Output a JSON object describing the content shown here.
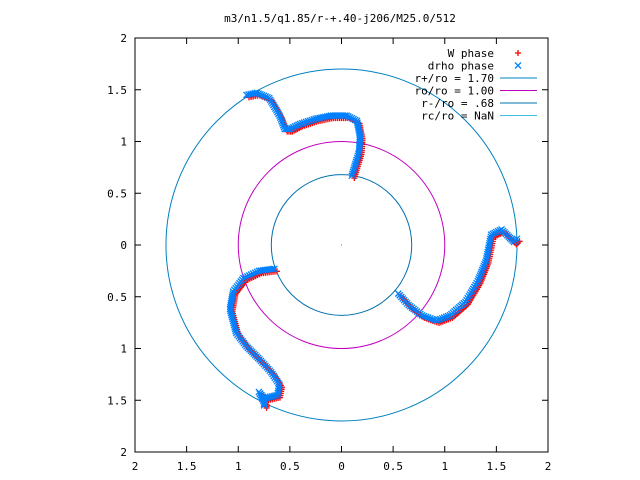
{
  "chart_data": {
    "type": "scatter",
    "title": "m3/n1.5/q1.85/r-+.40-j206/M25.0/512",
    "xlabel": "",
    "ylabel": "",
    "xlim": [
      -2,
      2
    ],
    "ylim": [
      -2,
      2
    ],
    "x_tick_values": [
      -2,
      -1.5,
      -1,
      -0.5,
      0,
      0.5,
      1,
      1.5,
      2
    ],
    "x_tick_labels": [
      "2",
      "1.5",
      "1",
      "0.5",
      "0",
      "0.5",
      "1",
      "1.5",
      "2"
    ],
    "y_tick_values": [
      2,
      1.5,
      1,
      0.5,
      0,
      -0.5,
      -1,
      -1.5,
      -2
    ],
    "y_tick_labels": [
      "2",
      "1.5",
      "1",
      "0.5",
      "0",
      "0.5",
      "1",
      "1.5",
      "2"
    ],
    "grid": false,
    "legend_position": "top-right",
    "series": [
      {
        "name": "W phase",
        "kind": "points",
        "marker": "+",
        "color": "#ff0000",
        "arms": [
          {
            "x": [
              0.1,
              0.17,
              0.18,
              0.15,
              0.05,
              -0.1,
              -0.25,
              -0.4,
              -0.5,
              -0.55,
              -0.6,
              -0.7,
              -0.82,
              -0.92
            ],
            "y": [
              0.67,
              0.9,
              1.05,
              1.2,
              1.25,
              1.25,
              1.22,
              1.17,
              1.12,
              1.12,
              1.25,
              1.42,
              1.47,
              1.45
            ]
          },
          {
            "x": [
              -0.65,
              -0.8,
              -0.95,
              -1.05,
              -1.08,
              -1.02,
              -0.92,
              -0.85,
              -0.78,
              -0.68,
              -0.6,
              -0.62,
              -0.75,
              -0.8,
              -0.75,
              -0.75
            ],
            "y": [
              -0.23,
              -0.25,
              -0.32,
              -0.45,
              -0.62,
              -0.85,
              -0.98,
              -1.05,
              -1.12,
              -1.23,
              -1.35,
              -1.45,
              -1.48,
              -1.42,
              -1.52,
              -1.55
            ]
          },
          {
            "x": [
              0.55,
              0.65,
              0.78,
              0.92,
              1.05,
              1.2,
              1.32,
              1.4,
              1.45,
              1.55,
              1.62,
              1.67,
              1.7
            ],
            "y": [
              -0.47,
              -0.58,
              -0.68,
              -0.73,
              -0.68,
              -0.55,
              -0.35,
              -0.15,
              0.1,
              0.15,
              0.08,
              0.03,
              0.06
            ]
          }
        ]
      },
      {
        "name": "drho phase",
        "kind": "points",
        "marker": "x",
        "color": "#0080ff",
        "arms": [
          {
            "x": [
              0.1,
              0.17,
              0.18,
              0.15,
              0.05,
              -0.1,
              -0.25,
              -0.4,
              -0.5,
              -0.55,
              -0.6,
              -0.7,
              -0.82,
              -0.92
            ],
            "y": [
              0.67,
              0.9,
              1.05,
              1.2,
              1.25,
              1.25,
              1.22,
              1.17,
              1.12,
              1.12,
              1.25,
              1.42,
              1.47,
              1.45
            ]
          },
          {
            "x": [
              -0.65,
              -0.8,
              -0.95,
              -1.05,
              -1.08,
              -1.02,
              -0.92,
              -0.85,
              -0.78,
              -0.68,
              -0.6,
              -0.62,
              -0.75,
              -0.8,
              -0.75,
              -0.75
            ],
            "y": [
              -0.23,
              -0.25,
              -0.32,
              -0.45,
              -0.62,
              -0.85,
              -0.98,
              -1.05,
              -1.12,
              -1.23,
              -1.35,
              -1.45,
              -1.48,
              -1.42,
              -1.52,
              -1.55
            ]
          },
          {
            "x": [
              0.55,
              0.65,
              0.78,
              0.92,
              1.05,
              1.2,
              1.32,
              1.4,
              1.45,
              1.55,
              1.62,
              1.67,
              1.7
            ],
            "y": [
              -0.47,
              -0.58,
              -0.68,
              -0.73,
              -0.68,
              -0.55,
              -0.35,
              -0.15,
              0.1,
              0.15,
              0.08,
              0.03,
              0.06
            ]
          }
        ]
      },
      {
        "name": "r+/ro = 1.70",
        "kind": "circle",
        "radius": 1.7,
        "color": "#0080c0"
      },
      {
        "name": "ro/ro = 1.00",
        "kind": "circle",
        "radius": 1.0,
        "color": "#c000c0"
      },
      {
        "name": "r-/ro = .68",
        "kind": "circle",
        "radius": 0.68,
        "color": "#0070b0"
      },
      {
        "name": "rc/ro = NaN",
        "kind": "circle",
        "radius": null,
        "color": "#40c0e0"
      }
    ]
  }
}
